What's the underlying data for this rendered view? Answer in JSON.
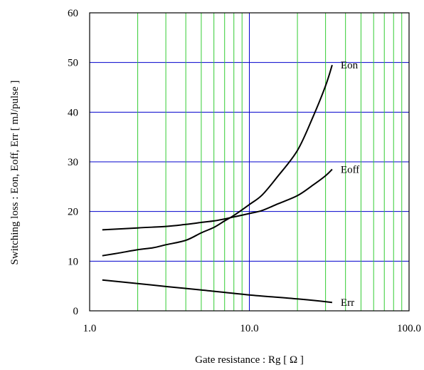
{
  "chart_data": {
    "type": "line",
    "title": "",
    "xlabel": "Gate resistance : Rg [ Ω ]",
    "ylabel": "Switching loss : Eon, Eoff, Err [ mJ/pulse ]",
    "x_scale": "log",
    "xlim": [
      1,
      100
    ],
    "ylim": [
      0,
      60
    ],
    "x_ticks": [
      {
        "value": 1,
        "label": "1.0"
      },
      {
        "value": 10,
        "label": "10.0"
      },
      {
        "value": 100,
        "label": "100.0"
      }
    ],
    "y_ticks": [
      {
        "value": 0,
        "label": "0"
      },
      {
        "value": 10,
        "label": "10"
      },
      {
        "value": 20,
        "label": "20"
      },
      {
        "value": 30,
        "label": "30"
      },
      {
        "value": 40,
        "label": "40"
      },
      {
        "value": 50,
        "label": "50"
      },
      {
        "value": 60,
        "label": "60"
      }
    ],
    "grid": {
      "major_color": "#0000cc",
      "minor_color": "#33cc33",
      "horizontal_color": "#0000cc"
    },
    "series": [
      {
        "name": "Eon",
        "color": "#000000",
        "points": [
          [
            1.2,
            11.1
          ],
          [
            1.5,
            11.6
          ],
          [
            2.0,
            12.3
          ],
          [
            2.5,
            12.7
          ],
          [
            3.0,
            13.3
          ],
          [
            4.0,
            14.2
          ],
          [
            5.0,
            15.7
          ],
          [
            6.0,
            16.8
          ],
          [
            7.0,
            18.1
          ],
          [
            8.0,
            19.2
          ],
          [
            10.0,
            21.4
          ],
          [
            12.0,
            23.3
          ],
          [
            15.0,
            27.0
          ],
          [
            20.0,
            32.3
          ],
          [
            25.0,
            39.0
          ],
          [
            30.0,
            45.3
          ],
          [
            33.0,
            49.5
          ]
        ]
      },
      {
        "name": "Eoff",
        "color": "#000000",
        "points": [
          [
            1.2,
            16.3
          ],
          [
            2.0,
            16.7
          ],
          [
            3.0,
            17.0
          ],
          [
            4.0,
            17.4
          ],
          [
            5.0,
            17.8
          ],
          [
            6.0,
            18.1
          ],
          [
            7.0,
            18.5
          ],
          [
            8.0,
            18.9
          ],
          [
            10.0,
            19.6
          ],
          [
            12.0,
            20.2
          ],
          [
            15.0,
            21.5
          ],
          [
            20.0,
            23.2
          ],
          [
            25.0,
            25.3
          ],
          [
            30.0,
            27.2
          ],
          [
            33.0,
            28.5
          ]
        ]
      },
      {
        "name": "Err",
        "color": "#000000",
        "points": [
          [
            1.2,
            6.2
          ],
          [
            2.0,
            5.5
          ],
          [
            3.0,
            4.9
          ],
          [
            5.0,
            4.2
          ],
          [
            10.0,
            3.2
          ],
          [
            20.0,
            2.4
          ],
          [
            33.0,
            1.7
          ]
        ]
      }
    ]
  }
}
